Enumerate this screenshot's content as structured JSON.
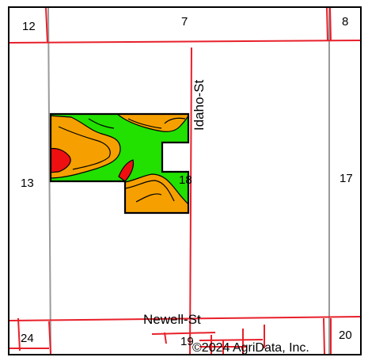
{
  "map": {
    "section_labels": {
      "s12": "12",
      "s7": "7",
      "s8": "8",
      "s13": "13",
      "s18": "18",
      "s17": "17",
      "s24": "24",
      "s19": "19",
      "s20": "20"
    },
    "streets": {
      "idaho": "Idaho-St",
      "newell": "Newell-St"
    },
    "copyright": "©2024 AgriData, Inc.",
    "colors": {
      "road": "#e8202a",
      "section_line": "#9a9a9a",
      "soil_green": "#22e000",
      "soil_orange": "#f5a000",
      "soil_red": "#ee1010",
      "outline": "#000000"
    }
  }
}
